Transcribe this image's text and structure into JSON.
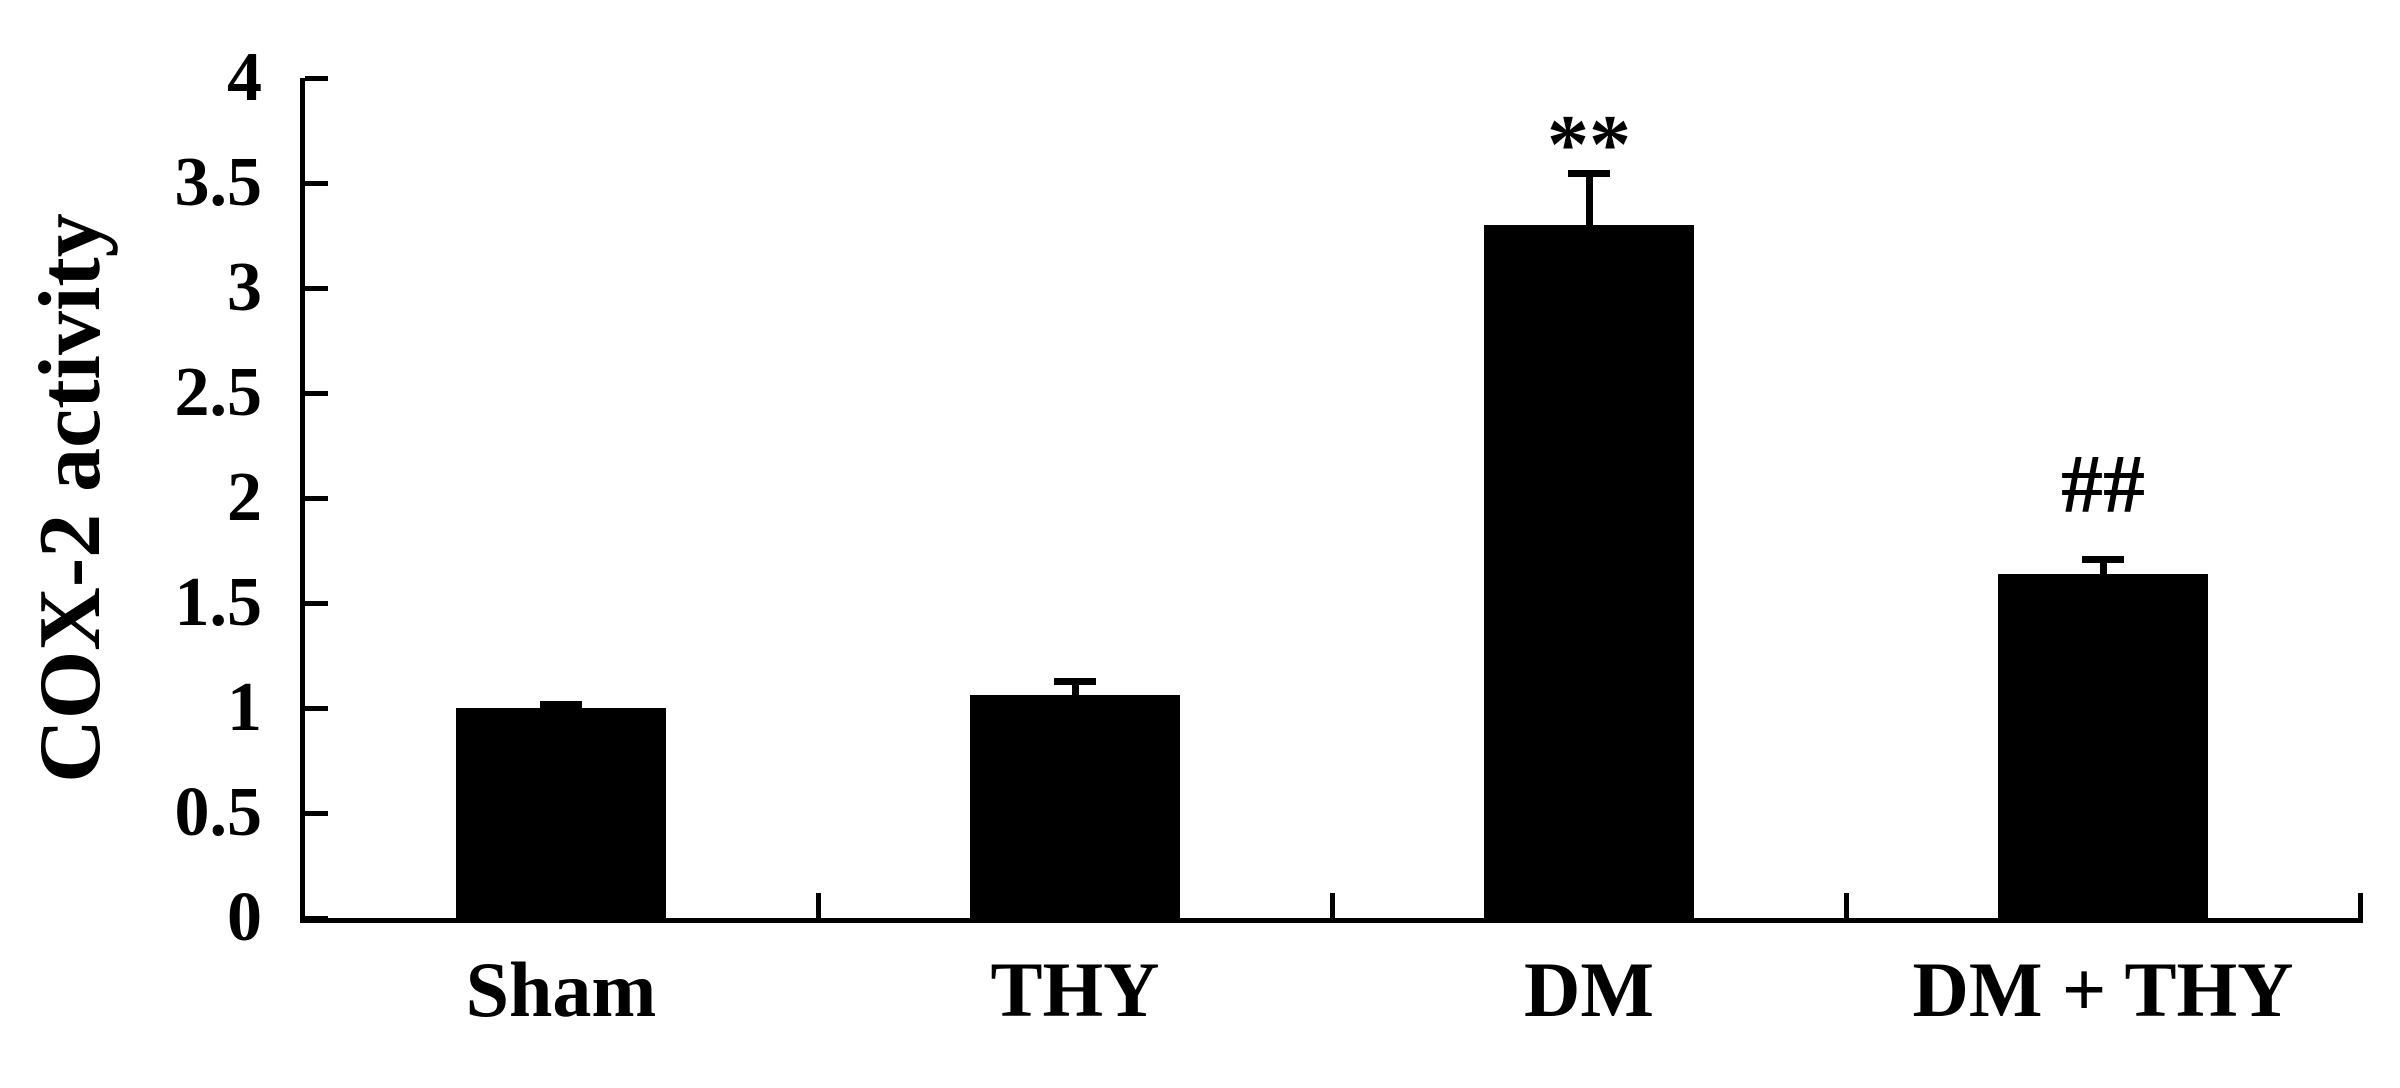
{
  "figure": {
    "background_color": "#ffffff",
    "text_color": "#000000"
  },
  "chart_data": {
    "type": "bar",
    "title": "",
    "xlabel": "",
    "ylabel": "COX-2 activity",
    "categories": [
      "Sham",
      "THY",
      "DM",
      "DM + THY"
    ],
    "series": [
      {
        "name": "COX-2 activity",
        "values": [
          1.0,
          1.06,
          3.3,
          1.64
        ],
        "errors_plus": [
          0.02,
          0.07,
          0.25,
          0.07
        ],
        "color": "#000000"
      }
    ],
    "annotations": [
      {
        "category": "DM",
        "label": "**",
        "y_value": 3.68
      },
      {
        "category": "DM + THY",
        "label": "##",
        "y_value": 2.06
      }
    ],
    "y_tick_labels": [
      "0",
      "0.5",
      "1",
      "1.5",
      "2",
      "2.5",
      "3",
      "3.5",
      "4"
    ],
    "ylim": [
      0,
      4
    ],
    "grid": false,
    "legend_position": "none",
    "bar_color": "#000000",
    "axis_color": "#000000"
  }
}
